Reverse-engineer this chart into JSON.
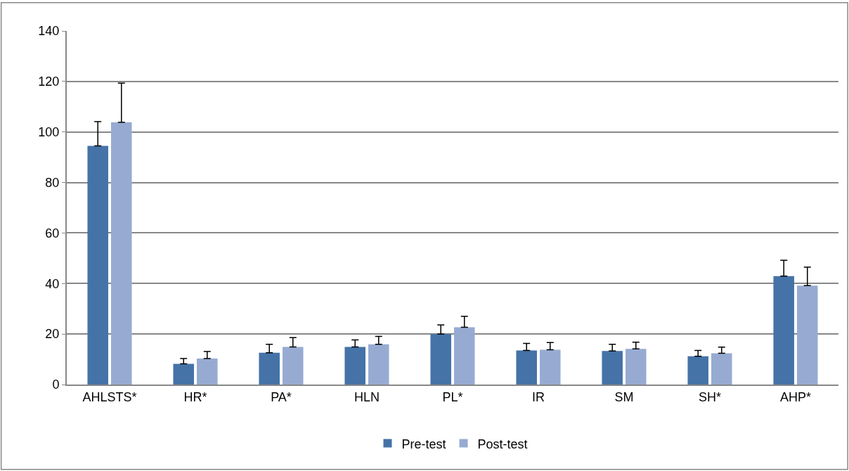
{
  "chart_data": {
    "type": "bar",
    "categories": [
      "AHLSTS*",
      "HR*",
      "PA*",
      "HLN",
      "PL*",
      "IR",
      "SM",
      "SH*",
      "AHP*"
    ],
    "series": [
      {
        "name": "Pre-test",
        "color": "#4573a7",
        "values": [
          94.5,
          8.2,
          12.6,
          14.9,
          20.0,
          13.5,
          13.3,
          11.2,
          42.9
        ],
        "errors": [
          [
            94.5,
            104.1
          ],
          [
            8.2,
            10.3
          ],
          [
            12.6,
            15.9
          ],
          [
            14.9,
            17.7
          ],
          [
            20.0,
            23.6
          ],
          [
            13.5,
            16.3
          ],
          [
            13.3,
            15.9
          ],
          [
            11.2,
            13.5
          ],
          [
            42.9,
            49.2
          ]
        ]
      },
      {
        "name": "Post-test",
        "color": "#97abd2",
        "values": [
          103.8,
          10.3,
          14.9,
          15.9,
          22.7,
          13.8,
          14.1,
          12.4,
          39.2
        ],
        "errors": [
          [
            103.8,
            119.3
          ],
          [
            10.3,
            13.1
          ],
          [
            14.9,
            18.6
          ],
          [
            15.9,
            19.1
          ],
          [
            22.7,
            27.0
          ],
          [
            13.8,
            16.6
          ],
          [
            14.1,
            16.8
          ],
          [
            12.4,
            14.8
          ],
          [
            39.2,
            46.5
          ]
        ]
      }
    ],
    "ylim": [
      0,
      140
    ],
    "yticks": [
      0,
      20,
      40,
      60,
      80,
      100,
      120,
      140
    ],
    "grid": "y",
    "legend": "bottom"
  }
}
